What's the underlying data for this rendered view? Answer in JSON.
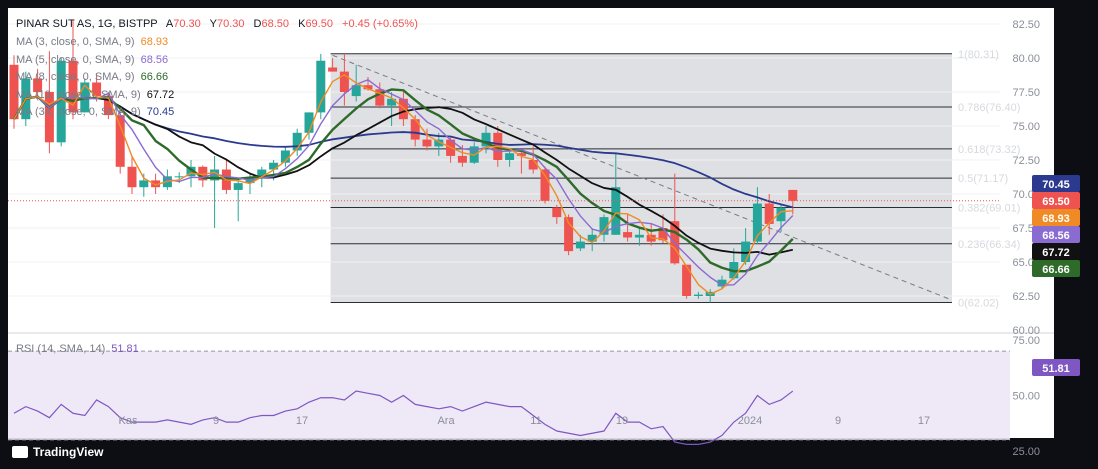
{
  "legend": {
    "symbol": "PINAR SUT AS, 1G, BISTPP",
    "ohlc": [
      {
        "k": "A",
        "v": "70.30"
      },
      {
        "k": "Y",
        "v": "70.30"
      },
      {
        "k": "D",
        "v": "68.50"
      },
      {
        "k": "K",
        "v": "69.50"
      }
    ],
    "change": "+0.45 (+0.65%)",
    "mas": [
      {
        "label": "MA (3, close, 0, SMA, 9)",
        "value": "68.93",
        "color": "#f08a24"
      },
      {
        "label": "MA (5, close, 0, SMA, 9)",
        "value": "68.56",
        "color": "#8a6bd1"
      },
      {
        "label": "MA (8, close, 0, SMA, 9)",
        "value": "66.66",
        "color": "#2e6b2a"
      },
      {
        "label": "MA (13, close, 0, SMA, 9)",
        "value": "67.72",
        "color": "#111111"
      },
      {
        "label": "MA (34, close, 0, SMA, 9)",
        "value": "70.45",
        "color": "#2b3a8f"
      }
    ]
  },
  "rsi_legend": {
    "label": "RSI (14, SMA, 14)",
    "value": "51.81"
  },
  "brand": "TradingView",
  "chart_data": {
    "type": "candlestick",
    "price_axis": {
      "ticks": [
        "82.50",
        "80.00",
        "77.50",
        "75.00",
        "72.50",
        "70.00",
        "67.50",
        "65.00",
        "62.50",
        "60.00"
      ],
      "ylim": [
        60,
        83.5
      ]
    },
    "rsi_axis": {
      "ticks": [
        "75.00",
        "50.00",
        "25.00"
      ],
      "levels": [
        70,
        30
      ]
    },
    "time_axis": [
      "Kas",
      "9",
      "17",
      "Ara",
      "11",
      "19",
      "2024",
      "9",
      "17"
    ],
    "fibonacci": [
      {
        "label": "1(80.31)",
        "price": 80.31
      },
      {
        "label": "0.786(76.40)",
        "price": 76.4
      },
      {
        "label": "0.618(73.32)",
        "price": 73.32
      },
      {
        "label": "0.5(71.17)",
        "price": 71.17
      },
      {
        "label": "0.382(69.01)",
        "price": 69.01
      },
      {
        "label": "0.236(66.34)",
        "price": 66.34
      },
      {
        "label": "0(62.02)",
        "price": 62.02
      }
    ],
    "price_tags": [
      {
        "value": "70.45",
        "price": 70.45,
        "bg": "#2b3a8f",
        "fg": "#ffffff"
      },
      {
        "value": "69.50",
        "price": 69.5,
        "bg": "#ef5350",
        "fg": "#ffffff"
      },
      {
        "value": "68.93",
        "price": 68.93,
        "bg": "#f08a24",
        "fg": "#ffffff"
      },
      {
        "value": "68.56",
        "price": 68.56,
        "bg": "#8a6bd1",
        "fg": "#ffffff"
      },
      {
        "value": "67.72",
        "price": 67.72,
        "bg": "#111111",
        "fg": "#ffffff"
      },
      {
        "value": "66.66",
        "price": 66.66,
        "bg": "#2e6b2a",
        "fg": "#ffffff"
      }
    ],
    "rsi_tag": {
      "value": "51.81",
      "bg": "#7e57c2"
    },
    "candles": [
      {
        "o": 79.5,
        "h": 80.2,
        "l": 74.8,
        "c": 75.5
      },
      {
        "o": 75.5,
        "h": 79.0,
        "l": 75.0,
        "c": 78.5
      },
      {
        "o": 78.5,
        "h": 79.2,
        "l": 77.0,
        "c": 77.5
      },
      {
        "o": 77.5,
        "h": 80.5,
        "l": 73.0,
        "c": 73.8
      },
      {
        "o": 73.8,
        "h": 80.0,
        "l": 73.5,
        "c": 79.8
      },
      {
        "o": 79.8,
        "h": 82.8,
        "l": 75.5,
        "c": 76.0
      },
      {
        "o": 76.0,
        "h": 78.5,
        "l": 76.0,
        "c": 78.2
      },
      {
        "o": 78.2,
        "h": 78.8,
        "l": 76.8,
        "c": 77.2
      },
      {
        "o": 77.2,
        "h": 77.5,
        "l": 75.5,
        "c": 75.8
      },
      {
        "o": 75.8,
        "h": 76.2,
        "l": 71.5,
        "c": 72.0
      },
      {
        "o": 72.0,
        "h": 72.8,
        "l": 70.0,
        "c": 70.5
      },
      {
        "o": 70.5,
        "h": 71.5,
        "l": 69.8,
        "c": 71.0
      },
      {
        "o": 71.0,
        "h": 71.5,
        "l": 70.0,
        "c": 70.5
      },
      {
        "o": 70.5,
        "h": 71.8,
        "l": 70.3,
        "c": 71.3
      },
      {
        "o": 71.3,
        "h": 71.6,
        "l": 70.8,
        "c": 71.3
      },
      {
        "o": 71.3,
        "h": 72.5,
        "l": 70.5,
        "c": 72.0
      },
      {
        "o": 72.0,
        "h": 72.1,
        "l": 70.5,
        "c": 71.0
      },
      {
        "o": 71.0,
        "h": 72.8,
        "l": 67.5,
        "c": 71.8
      },
      {
        "o": 71.8,
        "h": 72.5,
        "l": 70.0,
        "c": 70.3
      },
      {
        "o": 70.3,
        "h": 71.2,
        "l": 68.0,
        "c": 70.8
      },
      {
        "o": 70.8,
        "h": 71.5,
        "l": 70.0,
        "c": 71.2
      },
      {
        "o": 71.2,
        "h": 72.0,
        "l": 70.5,
        "c": 71.8
      },
      {
        "o": 71.8,
        "h": 72.5,
        "l": 71.0,
        "c": 72.3
      },
      {
        "o": 72.3,
        "h": 73.5,
        "l": 72.0,
        "c": 73.2
      },
      {
        "o": 73.2,
        "h": 74.8,
        "l": 72.8,
        "c": 74.5
      },
      {
        "o": 74.5,
        "h": 76.0,
        "l": 74.0,
        "c": 76.0
      },
      {
        "o": 76.0,
        "h": 80.3,
        "l": 75.5,
        "c": 79.8
      },
      {
        "o": 79.3,
        "h": 80.0,
        "l": 79.0,
        "c": 79.0
      },
      {
        "o": 79.0,
        "h": 80.31,
        "l": 76.5,
        "c": 77.5
      },
      {
        "o": 77.2,
        "h": 79.5,
        "l": 76.8,
        "c": 78.0
      },
      {
        "o": 78.0,
        "h": 78.6,
        "l": 77.6,
        "c": 77.7
      },
      {
        "o": 77.7,
        "h": 78.2,
        "l": 76.3,
        "c": 76.5
      },
      {
        "o": 76.5,
        "h": 77.5,
        "l": 75.0,
        "c": 77.0
      },
      {
        "o": 77.0,
        "h": 77.5,
        "l": 75.0,
        "c": 75.5
      },
      {
        "o": 75.5,
        "h": 75.8,
        "l": 73.5,
        "c": 74.0
      },
      {
        "o": 74.0,
        "h": 74.8,
        "l": 73.2,
        "c": 73.5
      },
      {
        "o": 73.5,
        "h": 74.5,
        "l": 72.8,
        "c": 74.0
      },
      {
        "o": 74.0,
        "h": 74.2,
        "l": 72.3,
        "c": 72.8
      },
      {
        "o": 72.8,
        "h": 73.6,
        "l": 72.0,
        "c": 72.3
      },
      {
        "o": 72.3,
        "h": 73.8,
        "l": 72.2,
        "c": 73.5
      },
      {
        "o": 73.5,
        "h": 75.0,
        "l": 73.0,
        "c": 74.5
      },
      {
        "o": 74.5,
        "h": 75.0,
        "l": 72.0,
        "c": 72.5
      },
      {
        "o": 72.5,
        "h": 73.2,
        "l": 72.0,
        "c": 73.0
      },
      {
        "o": 73.0,
        "h": 73.3,
        "l": 71.5,
        "c": 72.8
      },
      {
        "o": 72.5,
        "h": 73.5,
        "l": 71.5,
        "c": 71.8
      },
      {
        "o": 71.8,
        "h": 72.0,
        "l": 69.3,
        "c": 69.5
      },
      {
        "o": 69.0,
        "h": 69.2,
        "l": 67.8,
        "c": 68.3
      },
      {
        "o": 68.3,
        "h": 68.5,
        "l": 65.5,
        "c": 65.8
      },
      {
        "o": 66.0,
        "h": 67.0,
        "l": 65.8,
        "c": 66.5
      },
      {
        "o": 66.5,
        "h": 67.5,
        "l": 65.8,
        "c": 67.0
      },
      {
        "o": 67.0,
        "h": 68.5,
        "l": 66.5,
        "c": 68.3
      },
      {
        "o": 67.0,
        "h": 73.0,
        "l": 67.0,
        "c": 70.5
      },
      {
        "o": 67.2,
        "h": 68.5,
        "l": 66.5,
        "c": 66.8
      },
      {
        "o": 66.8,
        "h": 67.5,
        "l": 66.2,
        "c": 67.0
      },
      {
        "o": 67.0,
        "h": 67.8,
        "l": 66.2,
        "c": 66.5
      },
      {
        "o": 67.5,
        "h": 68.5,
        "l": 66.4,
        "c": 66.6
      },
      {
        "o": 68.0,
        "h": 71.5,
        "l": 64.8,
        "c": 64.9
      },
      {
        "o": 64.8,
        "h": 64.8,
        "l": 62.3,
        "c": 62.5
      },
      {
        "o": 62.5,
        "h": 62.8,
        "l": 62.3,
        "c": 62.6
      },
      {
        "o": 62.5,
        "h": 63.0,
        "l": 62.02,
        "c": 62.8
      },
      {
        "o": 63.2,
        "h": 64.0,
        "l": 63.0,
        "c": 63.7
      },
      {
        "o": 63.8,
        "h": 66.0,
        "l": 63.7,
        "c": 65.0
      },
      {
        "o": 65.0,
        "h": 67.5,
        "l": 64.8,
        "c": 66.5
      },
      {
        "o": 66.5,
        "h": 70.5,
        "l": 66.3,
        "c": 69.3
      },
      {
        "o": 69.3,
        "h": 70.0,
        "l": 67.0,
        "c": 67.8
      },
      {
        "o": 68.0,
        "h": 69.2,
        "l": 67.2,
        "c": 69.0
      },
      {
        "o": 70.3,
        "h": 70.3,
        "l": 68.5,
        "c": 69.5
      }
    ],
    "rsi": [
      42,
      45,
      43,
      40,
      46,
      42,
      41,
      48,
      45,
      40,
      38,
      38,
      38,
      39,
      38,
      37,
      39,
      40,
      38,
      38,
      40,
      41,
      41,
      43,
      44,
      47,
      49,
      49,
      48,
      52,
      51,
      50,
      47,
      50,
      46,
      45,
      44,
      45,
      43,
      45,
      47,
      46,
      45,
      45,
      41,
      37,
      34,
      33,
      32,
      33,
      34,
      42,
      38,
      38,
      35,
      36,
      29,
      28,
      28,
      29,
      32,
      38,
      42,
      50,
      46,
      48,
      52
    ]
  }
}
